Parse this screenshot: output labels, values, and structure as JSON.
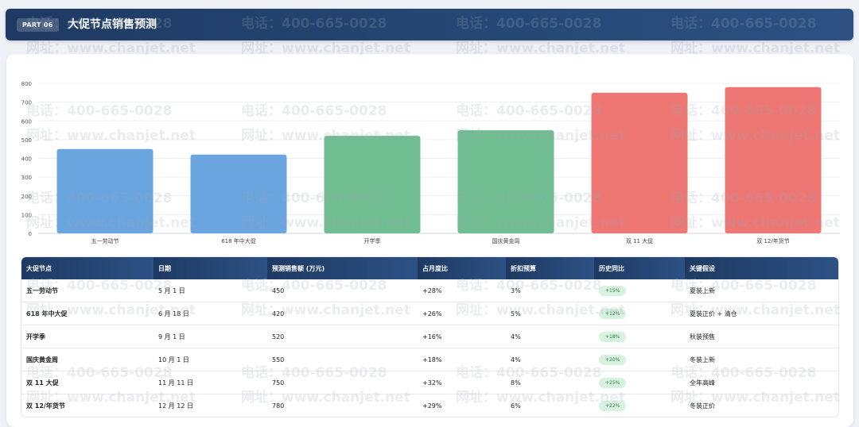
{
  "header": {
    "badge": "PART 06",
    "title": "大促节点销售预测"
  },
  "chart_data": {
    "type": "bar",
    "categories": [
      "五一劳动节",
      "618 年中大促",
      "开学季",
      "国庆黄金周",
      "双 11 大促",
      "双 12/年货节"
    ],
    "values": [
      450,
      420,
      520,
      550,
      750,
      780
    ],
    "colors": [
      "#6aa5e0",
      "#6aa5e0",
      "#6fbd90",
      "#6fbd90",
      "#ee7673",
      "#ee7673"
    ],
    "ylim": [
      0,
      800
    ],
    "yticks": [
      0,
      100,
      200,
      300,
      400,
      500,
      600,
      700,
      800
    ],
    "grid": true,
    "title": "",
    "xlabel": "",
    "ylabel": ""
  },
  "table": {
    "headers": [
      "大促节点",
      "日期",
      "预测销售额 (万元)",
      "占月度比",
      "折扣预算",
      "历史同比",
      "关键假设"
    ],
    "rows": [
      [
        "五一劳动节",
        "5 月 1 日",
        "450",
        "+28%",
        "3%",
        "+15%",
        "夏装上新"
      ],
      [
        "618 年中大促",
        "6 月 18 日",
        "420",
        "+26%",
        "5%",
        "+12%",
        "夏装正价 + 清仓"
      ],
      [
        "开学季",
        "9 月 1 日",
        "520",
        "+16%",
        "4%",
        "+18%",
        "秋装预售"
      ],
      [
        "国庆黄金周",
        "10 月 1 日",
        "550",
        "+18%",
        "4%",
        "+20%",
        "冬装上新"
      ],
      [
        "双 11 大促",
        "11 月 11 日",
        "750",
        "+32%",
        "8%",
        "+25%",
        "全年高峰"
      ],
      [
        "双 12/年货节",
        "12 月 12 日",
        "780",
        "+29%",
        "6%",
        "+22%",
        "冬装正价"
      ]
    ]
  },
  "watermark": {
    "phone": "电话：400-665-0028",
    "url": "网址：www.chanjet.net"
  }
}
